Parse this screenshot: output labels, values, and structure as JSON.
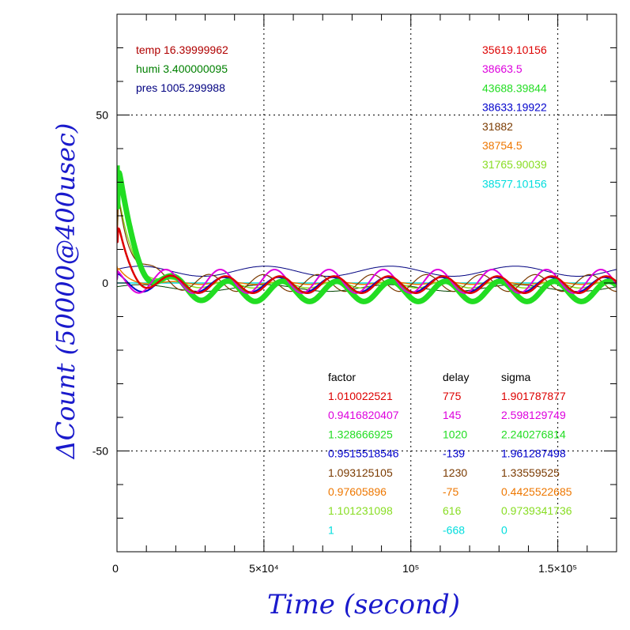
{
  "chart_data": {
    "type": "line",
    "xlabel": "Time (second)",
    "ylabel": "ΔCount (50000@400usec)",
    "xlim": [
      0,
      170000
    ],
    "ylim": [
      -80,
      80
    ],
    "grid": "dotted",
    "x_ticks": [
      {
        "value": 0,
        "label": "0"
      },
      {
        "value": 50000,
        "label": "5×10⁴"
      },
      {
        "value": 100000,
        "label": "10⁵"
      },
      {
        "value": 150000,
        "label": "1.5×10⁵"
      }
    ],
    "y_ticks": [
      {
        "value": 50,
        "label": "50"
      },
      {
        "value": 0,
        "label": "0"
      },
      {
        "value": -50,
        "label": "-50"
      }
    ],
    "env": [
      {
        "text": "temp 16.39999962",
        "color": "#b00000"
      },
      {
        "text": "humi 3.400000095",
        "color": "#008000"
      },
      {
        "text": "pres 1005.299988",
        "color": "#000080"
      }
    ],
    "table_headers": {
      "factor": "factor",
      "delay": "delay",
      "sigma": "sigma"
    },
    "series": [
      {
        "mean": "35619.10156",
        "factor": "1.010022521",
        "delay": "775",
        "sigma": "1.901787877",
        "color": "#dd0000",
        "amp": 2.5,
        "phase": 0.3,
        "offset": -0.5,
        "start": 17,
        "decay": 4000,
        "width": 2.5
      },
      {
        "mean": "38663.5",
        "factor": "0.9416820407",
        "delay": "145",
        "sigma": "2.598129749",
        "color": "#dd00dd",
        "amp": 3.5,
        "phase": 0.9,
        "offset": 0.5,
        "start": 1,
        "decay": 3000,
        "width": 2
      },
      {
        "mean": "43688.39844",
        "factor": "1.328666925",
        "delay": "1020",
        "sigma": "2.240276814",
        "color": "#22dd22",
        "amp": 3.0,
        "phase": 0.0,
        "offset": -2.5,
        "start": 35,
        "decay": 6000,
        "width": 7
      },
      {
        "mean": "38633.19922",
        "factor": "0.9515518546",
        "delay": "-139",
        "sigma": "1.961287498",
        "color": "#0000cc",
        "amp": 2.2,
        "phase": 0.5,
        "offset": -0.5,
        "start": 1,
        "decay": 3000,
        "width": 2
      },
      {
        "mean": "31882",
        "factor": "1.093125105",
        "delay": "1230",
        "sigma": "1.33559525",
        "color": "#7a3a00",
        "amp": 2.5,
        "phase": 2.2,
        "offset": 0,
        "start": 30,
        "decay": 5000,
        "width": 1.2
      },
      {
        "mean": "38754.5",
        "factor": "0.97605896",
        "delay": "-75",
        "sigma": "0.4425522685",
        "color": "#ee7700",
        "amp": 0.4,
        "phase": 0.1,
        "offset": 0,
        "start": 5,
        "decay": 3000,
        "width": 1.5
      },
      {
        "mean": "31765.90039",
        "factor": "1.101231098",
        "delay": "616",
        "sigma": "0.9739341736",
        "color": "#88dd22",
        "amp": 1.0,
        "phase": 0.2,
        "offset": -0.5,
        "start": 28,
        "decay": 5000,
        "width": 1.5
      },
      {
        "mean": "38577.10156",
        "factor": "1",
        "delay": "-668",
        "sigma": "0",
        "color": "#00dddd",
        "amp": 0,
        "phase": 0,
        "offset": 0,
        "start": 0,
        "decay": 1000,
        "width": 1.5
      }
    ],
    "extra_lines": [
      {
        "color": "#000080",
        "kind": "slow",
        "amp": 1.5,
        "offset": 3.5,
        "start": 0
      },
      {
        "color": "#004400",
        "kind": "slow",
        "amp": 1.0,
        "offset": -1.5,
        "start": 8
      }
    ]
  }
}
